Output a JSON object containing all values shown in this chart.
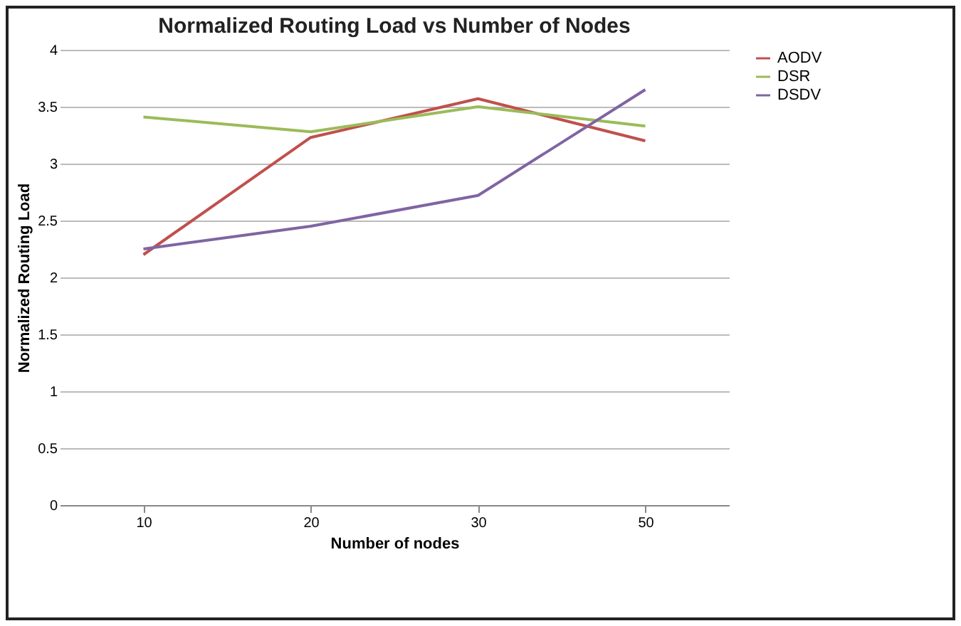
{
  "chart_data": {
    "type": "line",
    "title": "Normalized Routing Load vs Number of Nodes",
    "xlabel": "Number of nodes",
    "ylabel": "Normalized Routing Load",
    "categories": [
      "10",
      "20",
      "30",
      "50"
    ],
    "series": [
      {
        "name": "AODV",
        "color": "#c0504d",
        "values": [
          2.2,
          3.23,
          3.57,
          3.2
        ]
      },
      {
        "name": "DSR",
        "color": "#9bbb59",
        "values": [
          3.41,
          3.28,
          3.5,
          3.33
        ]
      },
      {
        "name": "DSDV",
        "color": "#8064a2",
        "values": [
          2.25,
          2.45,
          2.72,
          3.65
        ]
      }
    ],
    "ylim": [
      0,
      4
    ],
    "yticks": [
      0,
      0.5,
      1,
      1.5,
      2,
      2.5,
      3,
      3.5,
      4
    ],
    "grid": "y",
    "legend": "right",
    "marker": "none",
    "line_style": "solid"
  }
}
